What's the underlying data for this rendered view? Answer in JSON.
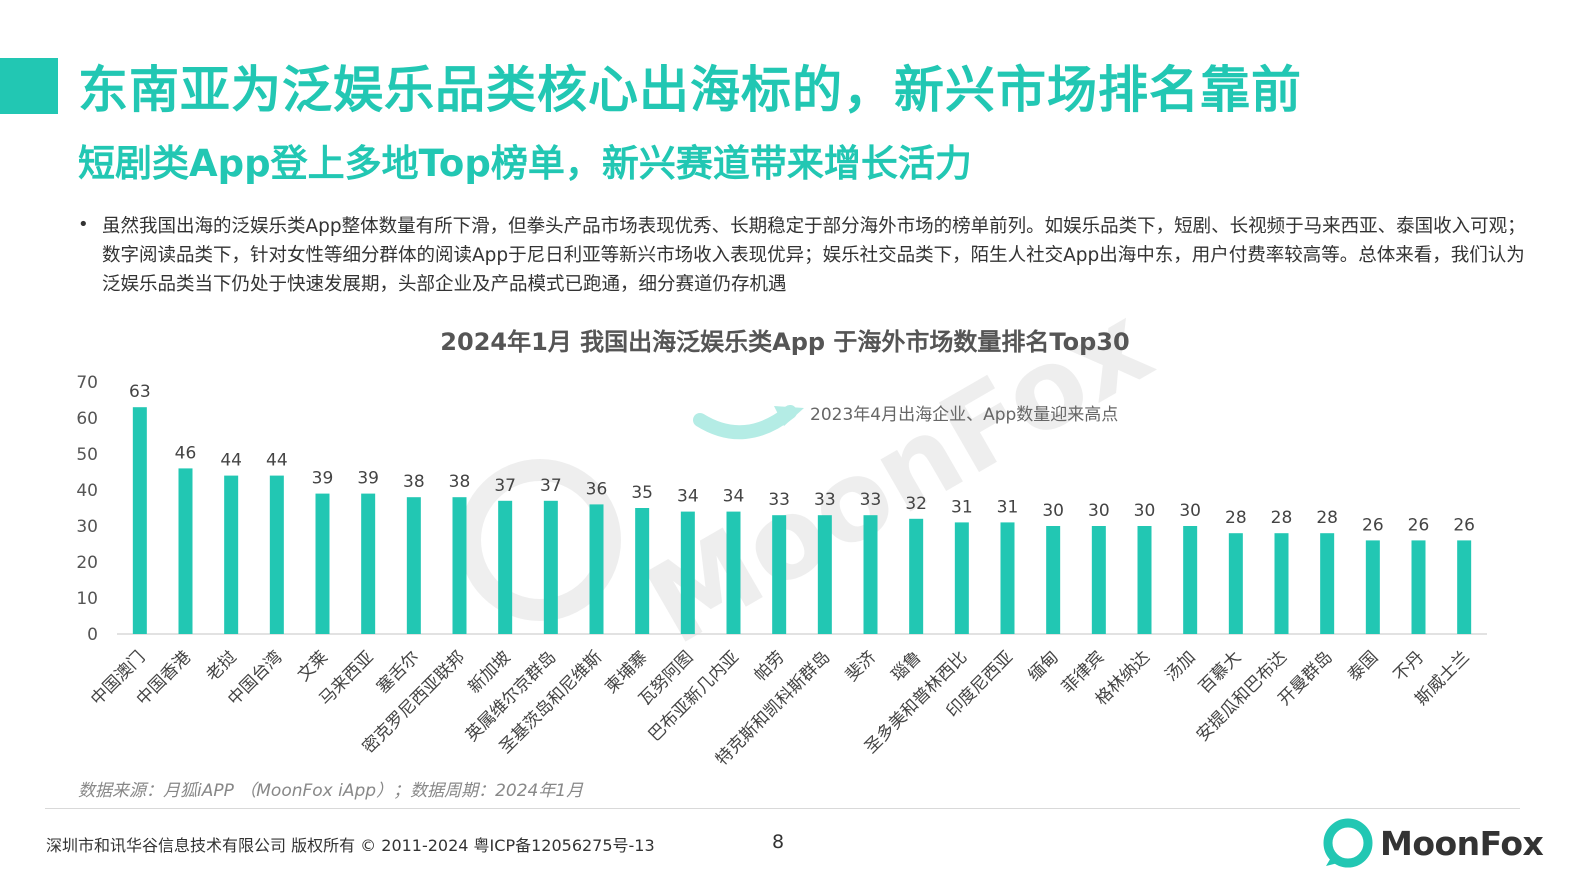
{
  "header": {
    "title": "东南亚为泛娱乐品类核心出海标的，新兴市场排名靠前",
    "subtitle": "短剧类App登上多地Top榜单，新兴赛道带来增长活力"
  },
  "body": {
    "bullet_symbol": "•",
    "bullet_text": "虽然我国出海的泛娱乐类App整体数量有所下滑，但拳头产品市场表现优秀、长期稳定于部分海外市场的榜单前列。如娱乐品类下，短剧、长视频于马来西亚、泰国收入可观；数字阅读品类下，针对女性等细分群体的阅读App于尼日利亚等新兴市场收入表现优异；娱乐社交品类下，陌生人社交App出海中东，用户付费率较高等。总体来看，我们认为泛娱乐品类当下仍处于快速发展期，头部企业及产品模式已跑通，细分赛道仍存机遇"
  },
  "chart_data": {
    "type": "bar",
    "title": "2024年1月 我国出海泛娱乐类App 于海外市场数量排名Top30",
    "xlabel": "",
    "ylabel": "",
    "ylim": [
      0,
      70
    ],
    "yticks": [
      0,
      10,
      20,
      30,
      40,
      50,
      60,
      70
    ],
    "grid": false,
    "bar_color": "#22c7b3",
    "categories": [
      "中国澳门",
      "中国香港",
      "老挝",
      "中国台湾",
      "文莱",
      "马来西亚",
      "塞舌尔",
      "密克罗尼西亚联邦",
      "新加坡",
      "英属维尔京群岛",
      "圣基茨岛和尼维斯",
      "柬埔寨",
      "瓦努阿图",
      "巴布亚新几内亚",
      "帕劳",
      "特克斯和凯科斯群岛",
      "斐济",
      "瑙鲁",
      "圣多美和普林西比",
      "印度尼西亚",
      "缅甸",
      "菲律宾",
      "格林纳达",
      "汤加",
      "百慕大",
      "安提瓜和巴布达",
      "开曼群岛",
      "泰国",
      "不丹",
      "斯威士兰"
    ],
    "values": [
      63,
      46,
      44,
      44,
      39,
      39,
      38,
      38,
      37,
      37,
      36,
      35,
      34,
      34,
      33,
      33,
      33,
      32,
      31,
      31,
      30,
      30,
      30,
      30,
      28,
      28,
      28,
      26,
      26,
      26
    ],
    "annotations": [
      {
        "text": "2023年4月出海企业、App数量迎来高点"
      }
    ]
  },
  "footer": {
    "source": "数据来源：月狐iAPP （MoonFox iApp）；数据周期：2024年1月",
    "copyright": "深圳市和讯华谷信息技术有限公司 版权所有 © 2011-2024 粤ICP备12056275号-13",
    "page_number": "8",
    "logo_text": "MoonFox"
  },
  "colors": {
    "accent": "#22c7b3",
    "text": "#333333"
  }
}
